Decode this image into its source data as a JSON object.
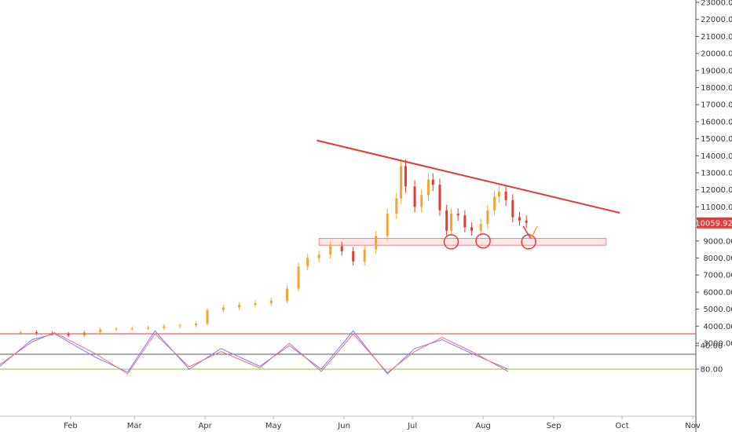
{
  "chart_data": [
    {
      "type": "candlestick",
      "x_type": "date",
      "x": [
        "2019-01-10",
        "2019-01-17",
        "2019-01-24",
        "2019-01-31",
        "2019-02-07",
        "2019-02-14",
        "2019-02-21",
        "2019-02-28",
        "2019-03-07",
        "2019-03-14",
        "2019-03-21",
        "2019-03-28",
        "2019-04-02",
        "2019-04-09",
        "2019-04-16",
        "2019-04-23",
        "2019-04-30",
        "2019-05-07",
        "2019-05-12",
        "2019-05-16",
        "2019-05-21",
        "2019-05-26",
        "2019-05-31",
        "2019-06-05",
        "2019-06-10",
        "2019-06-15",
        "2019-06-20",
        "2019-06-24",
        "2019-06-26",
        "2019-06-28",
        "2019-07-02",
        "2019-07-05",
        "2019-07-08",
        "2019-07-10",
        "2019-07-13",
        "2019-07-16",
        "2019-07-18",
        "2019-07-21",
        "2019-07-24",
        "2019-07-27",
        "2019-07-31",
        "2019-08-03",
        "2019-08-06",
        "2019-08-08",
        "2019-08-11",
        "2019-08-14",
        "2019-08-17",
        "2019-08-20"
      ],
      "close": [
        3650,
        3600,
        3560,
        3450,
        3650,
        3800,
        3850,
        3880,
        3900,
        4000,
        4050,
        4150,
        4950,
        5100,
        5250,
        5350,
        5500,
        6200,
        7500,
        8000,
        8200,
        8700,
        8400,
        7800,
        8500,
        9300,
        10600,
        11500,
        13400,
        12200,
        11000,
        11700,
        12600,
        12300,
        10800,
        9600,
        10600,
        10500,
        9800,
        9600,
        10000,
        10800,
        11600,
        11900,
        11400,
        10400,
        10200,
        10060
      ],
      "y_axis_ticks": [
        "23000.00",
        "22000.00",
        "21000.00",
        "20000.00",
        "19000.00",
        "18000.00",
        "17000.00",
        "16000.00",
        "15000.00",
        "14000.00",
        "13000.00",
        "12000.00",
        "11000.00",
        "9000.00",
        "8000.00",
        "7000.00",
        "6000.00",
        "5000.00",
        "4000.00",
        "3000.00"
      ],
      "last_price": "10059.92",
      "trendline": [
        {
          "x": "2019-05-20",
          "y": 14900
        },
        {
          "x": "2019-09-30",
          "y": 10650
        }
      ],
      "support_zone": {
        "from": 8750,
        "to": 9150
      },
      "colors": {
        "up": "#f7a52a",
        "down": "#e53935",
        "trendline": "#e53935",
        "zone": "#e53935",
        "price_tag": "#e53935"
      }
    },
    {
      "type": "line",
      "x_type": "date",
      "series": [
        {
          "x": [
            "2019-01-01",
            "2019-01-15",
            "2019-01-25",
            "2019-02-12",
            "2019-02-26",
            "2019-03-10",
            "2019-03-25",
            "2019-04-08",
            "2019-04-25",
            "2019-05-08",
            "2019-05-22",
            "2019-06-05",
            "2019-06-20",
            "2019-07-02",
            "2019-07-14",
            "2019-07-28",
            "2019-08-12"
          ],
          "y": [
            75,
            30,
            20,
            60,
            85,
            15,
            80,
            45,
            75,
            40,
            80,
            15,
            88,
            45,
            30,
            55,
            80
          ],
          "color": "#7878ff"
        },
        {
          "x": [
            "2019-01-01",
            "2019-01-15",
            "2019-01-25",
            "2019-02-12",
            "2019-02-26",
            "2019-03-10",
            "2019-03-25",
            "2019-04-08",
            "2019-04-25",
            "2019-05-08",
            "2019-05-22",
            "2019-06-05",
            "2019-06-20",
            "2019-07-02",
            "2019-07-14",
            "2019-07-28",
            "2019-08-12"
          ],
          "y": [
            72,
            34,
            18,
            54,
            88,
            20,
            76,
            50,
            78,
            36,
            84,
            20,
            86,
            50,
            26,
            52,
            84
          ],
          "color": "#e57373"
        }
      ],
      "y_axis_ticks": [
        "80.00",
        "40.00"
      ],
      "hlines": [
        {
          "y": 80,
          "color": "#8bc34a"
        },
        {
          "y": 20,
          "color": "#e53935"
        }
      ]
    }
  ],
  "x_axis_ticks": [
    "Feb",
    "Mar",
    "Apr",
    "May",
    "Jun",
    "Jul",
    "Aug",
    "Sep",
    "Oct",
    "Nov"
  ],
  "theme": {
    "background": "#ffffff",
    "axis_text": "#333333",
    "grid": "#d6d6d6"
  }
}
